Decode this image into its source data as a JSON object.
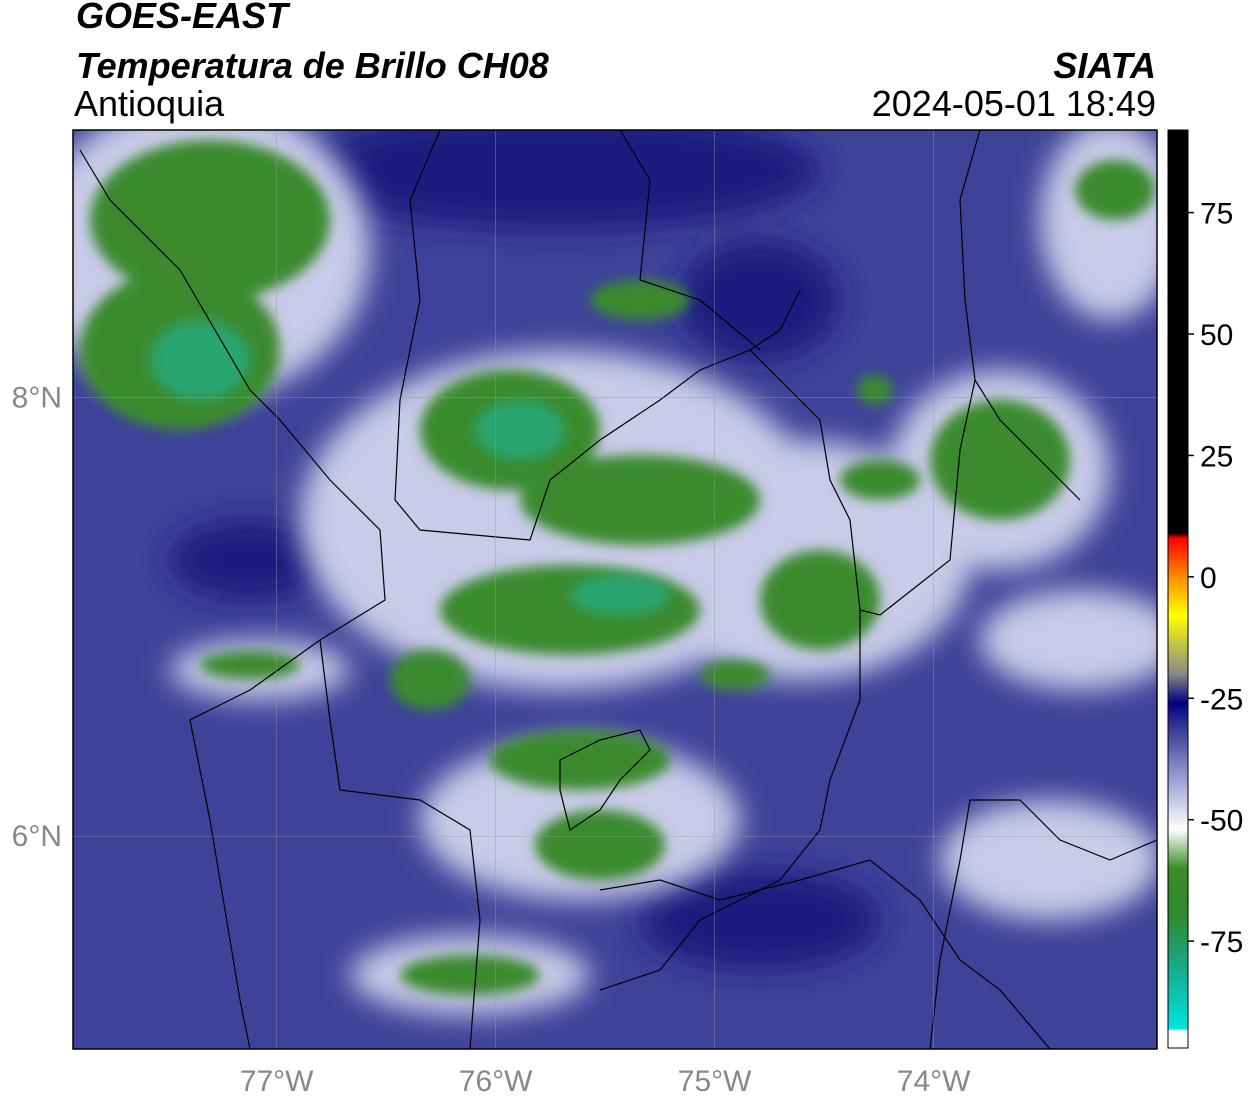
{
  "header": {
    "line1": "GOES-EAST",
    "line2": "Temperatura de Brillo CH08",
    "region": "Antioquia",
    "source": "SIATA",
    "datetime": "2024-05-01 18:49"
  },
  "map": {
    "xlim": [
      -77.93,
      -72.98
    ],
    "ylim": [
      5.03,
      9.22
    ],
    "xticks": [
      {
        "value": -77,
        "label": "77°W"
      },
      {
        "value": -76,
        "label": "76°W"
      },
      {
        "value": -75,
        "label": "75°W"
      },
      {
        "value": -74,
        "label": "74°W"
      }
    ],
    "yticks": [
      {
        "value": 8,
        "label": "8°N"
      },
      {
        "value": 6,
        "label": "6°N"
      }
    ],
    "grid": true
  },
  "colorbar": {
    "clim": [
      -97,
      92
    ],
    "ticks": [
      75,
      50,
      25,
      0,
      -25,
      -50,
      -75
    ],
    "stops": [
      {
        "value": -97,
        "color": "#ffffff"
      },
      {
        "value": -93.5,
        "color": "#ffffff"
      },
      {
        "value": -93,
        "color": "#00e5e0"
      },
      {
        "value": -80,
        "color": "#19a888"
      },
      {
        "value": -70,
        "color": "#2e8b2e"
      },
      {
        "value": -60,
        "color": "#3c8c28"
      },
      {
        "value": -52,
        "color": "#ffffff"
      },
      {
        "value": -42,
        "color": "#9fa3d6"
      },
      {
        "value": -30,
        "color": "#2a2f8f"
      },
      {
        "value": -26,
        "color": "#000080"
      },
      {
        "value": -20,
        "color": "#888888"
      },
      {
        "value": -8,
        "color": "#ffff00"
      },
      {
        "value": 0,
        "color": "#ff8c00"
      },
      {
        "value": 8,
        "color": "#ff0000"
      },
      {
        "value": 9,
        "color": "#000000"
      },
      {
        "value": 92,
        "color": "#000000"
      }
    ]
  }
}
